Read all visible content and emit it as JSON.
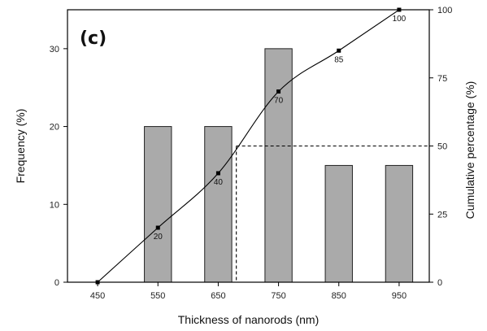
{
  "chart_data": {
    "type": "bar",
    "panel_label": "(c)",
    "xlabel": "Thickness of nanorods (nm)",
    "ylabel": "Frequency (%)",
    "y2label": "Cumulative percentage (%)",
    "x_ticks": [
      "450",
      "550",
      "650",
      "750",
      "850",
      "950"
    ],
    "xlim": [
      400,
      1000
    ],
    "ylim": [
      0,
      35
    ],
    "y_ticks": [
      "0",
      "10",
      "20",
      "30"
    ],
    "y2lim": [
      0,
      100
    ],
    "y2_ticks": [
      "0",
      "25",
      "50",
      "75",
      "100"
    ],
    "series": [
      {
        "type": "bar",
        "x": [
          550,
          650,
          750,
          850,
          950
        ],
        "values": [
          20,
          20,
          30,
          15,
          15
        ],
        "color": "#aaaaaa",
        "edge_color": "#222222"
      },
      {
        "type": "line",
        "axis": "right",
        "x": [
          450,
          550,
          650,
          750,
          850,
          950
        ],
        "values": [
          0,
          20,
          40,
          70,
          85,
          100
        ],
        "point_labels": [
          "",
          "20",
          "40",
          "70",
          "85",
          "100"
        ],
        "color": "#000000"
      }
    ],
    "reference_line": {
      "y2": 50,
      "x": 680,
      "style": "dashed"
    },
    "grid": false,
    "legend": "none"
  }
}
